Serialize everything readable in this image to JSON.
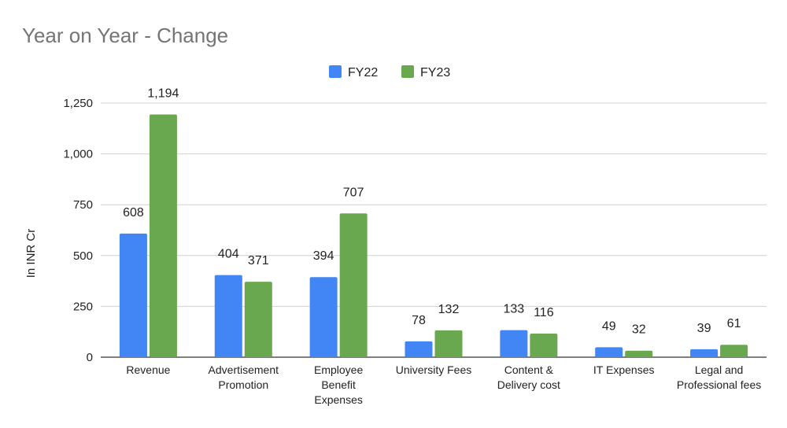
{
  "chart_data": {
    "type": "bar",
    "title": "Year on Year - Change",
    "ylabel": "In INR Cr",
    "xlabel": "",
    "ylim": [
      0,
      1250
    ],
    "yticks": [
      0,
      250,
      500,
      750,
      1000,
      1250
    ],
    "ytick_labels": [
      "0",
      "250",
      "500",
      "750",
      "1,000",
      "1,250"
    ],
    "grid": true,
    "legend_position": "top-center",
    "categories": [
      [
        "Revenue"
      ],
      [
        "Advertisement",
        "Promotion"
      ],
      [
        "Employee",
        "Benefit",
        "Expenses"
      ],
      [
        "University Fees"
      ],
      [
        "Content &",
        "Delivery cost"
      ],
      [
        "IT Expenses"
      ],
      [
        "Legal and",
        "Professional fees"
      ]
    ],
    "series": [
      {
        "name": "FY22",
        "color": "#4285F4",
        "values": [
          608,
          404,
          394,
          78,
          133,
          49,
          39
        ],
        "labels": [
          "608",
          "404",
          "394",
          "78",
          "133",
          "49",
          "39"
        ]
      },
      {
        "name": "FY23",
        "color": "#6AA84F",
        "values": [
          1194,
          371,
          707,
          132,
          116,
          32,
          61
        ],
        "labels": [
          "1,194",
          "371",
          "707",
          "132",
          "116",
          "32",
          "61"
        ]
      }
    ]
  }
}
